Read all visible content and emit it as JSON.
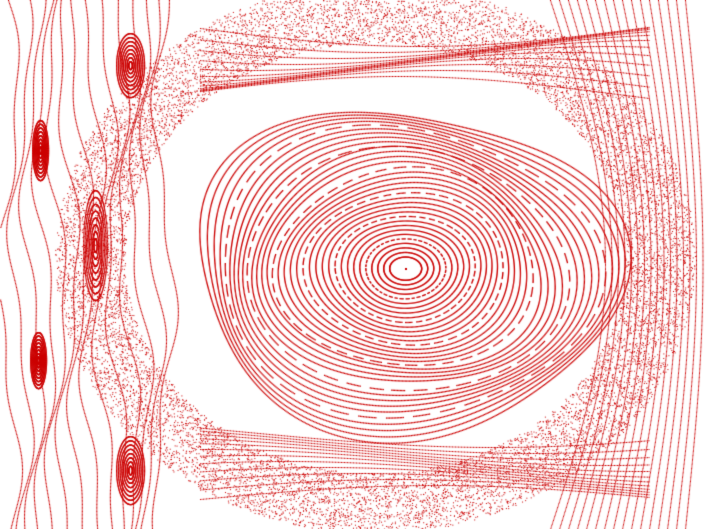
{
  "figure": {
    "kind": "poincare-section",
    "point_color": "#cc0000",
    "background_color": "#ffffff",
    "description_visible_text": ""
  }
}
